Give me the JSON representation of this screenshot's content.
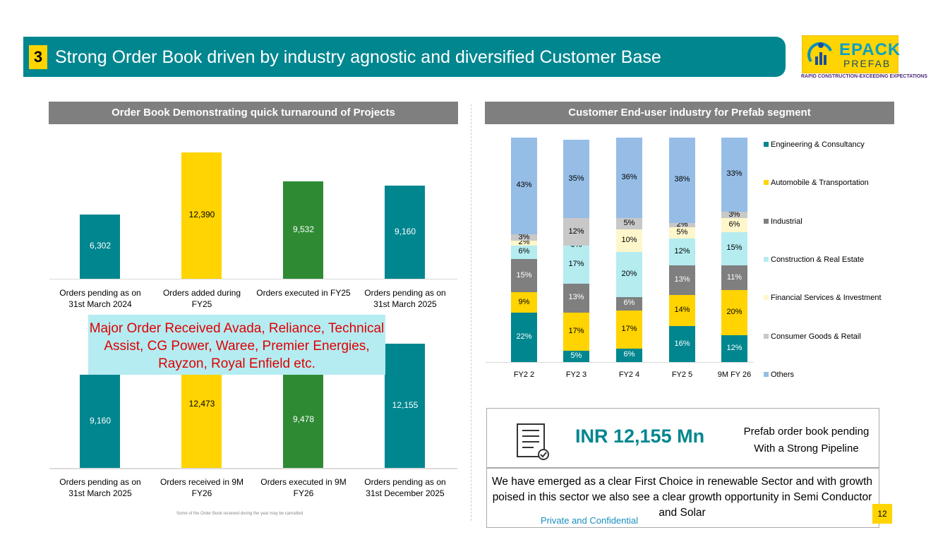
{
  "header": {
    "number": "3",
    "title": "Strong Order Book driven by industry agnostic and diversified Customer Base"
  },
  "logo": {
    "brand": "EPACK",
    "sub": "PREFAB",
    "tagline": "RAPID CONSTRUCTION-EXCEEDING EXPECTATIONS"
  },
  "left": {
    "title": "Order Book  Demonstrating quick turnaround of Projects",
    "top_chart": [
      {
        "label": "Orders pending as on 31st March 2024",
        "value": 6302,
        "display": "6,302",
        "color": "#00868f"
      },
      {
        "label": "Orders added during FY25",
        "value": 12390,
        "display": "12,390",
        "color": "#ffd400"
      },
      {
        "label": "Orders executed in FY25",
        "value": 9532,
        "display": "9,532",
        "color": "#2e8b34"
      },
      {
        "label": "Orders pending as on 31st March 2025",
        "value": 9160,
        "display": "9,160",
        "color": "#00868f"
      }
    ],
    "bottom_chart": [
      {
        "label": "Orders pending as on 31st March 2025",
        "value": 9160,
        "display": "9,160",
        "color": "#00868f"
      },
      {
        "label": "Orders received in 9M FY26",
        "value": 12473,
        "display": "12,473",
        "color": "#ffd400"
      },
      {
        "label": "Orders executed in 9M FY26",
        "value": 9478,
        "display": "9,478",
        "color": "#2e8b34"
      },
      {
        "label": "Orders pending as on 31st December 2025",
        "value": 12155,
        "display": "12,155",
        "color": "#00868f"
      }
    ],
    "major_orders": "Major Order Received Avada, Reliance, Technical Assist, CG Power, Waree, Premier Energies, Rayzon, Royal Enfield etc.",
    "footnote": "Some of the Order Book received during the year may be cancelled"
  },
  "right": {
    "title": "Customer End-user industry for Prefab segment"
  },
  "chart_data": {
    "type": "bar",
    "stacked": true,
    "title": "Customer End-user industry for Prefab segment",
    "categories": [
      "FY2 2",
      "FY2 3",
      "FY2 4",
      "FY2 5",
      "9M FY 26"
    ],
    "legend_position": "right",
    "series": [
      {
        "name": "Engineering & Consultancy",
        "color": "#00868f",
        "values": [
          22,
          5,
          6,
          16,
          12
        ]
      },
      {
        "name": "Automobile & Transportation",
        "color": "#ffd400",
        "values": [
          9,
          17,
          17,
          14,
          20
        ]
      },
      {
        "name": "Industrial",
        "color": "#7f7f7f",
        "values": [
          15,
          13,
          6,
          13,
          11
        ]
      },
      {
        "name": "Construction & Real Estate",
        "color": "#b4ecf0",
        "values": [
          6,
          17,
          20,
          12,
          15
        ]
      },
      {
        "name": "Financial Services & Investment",
        "color": "#fff6cc",
        "values": [
          2,
          0,
          10,
          5,
          6
        ]
      },
      {
        "name": "Consumer Goods & Retail",
        "color": "#c8c8c8",
        "values": [
          3,
          12,
          5,
          2,
          3
        ]
      },
      {
        "name": "Others",
        "color": "#95bde6",
        "values": [
          43,
          35,
          36,
          38,
          33
        ]
      }
    ]
  },
  "info": {
    "amount": "INR 12,155 Mn",
    "desc1": "Prefab order book pending",
    "desc2": "With a Strong Pipeline",
    "statement": "We have emerged as a clear First Choice in renewable Sector and with growth poised in this sector we also see a clear growth opportunity in Semi Conductor and Solar"
  },
  "footer": {
    "confidential": "Private and Confidential",
    "page": "12"
  }
}
